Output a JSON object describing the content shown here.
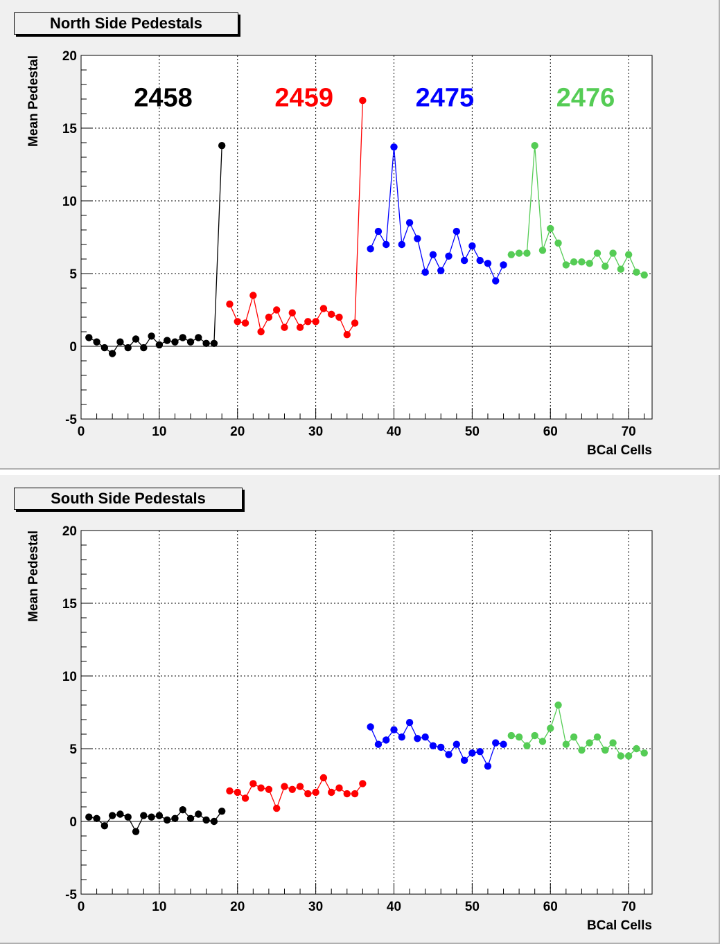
{
  "chart_data": [
    {
      "type": "line",
      "title": "North Side Pedestals",
      "xlabel": "BCal Cells",
      "ylabel": "Mean Pedestal",
      "xlim": [
        0,
        73
      ],
      "ylim": [
        -5,
        20
      ],
      "x_ticks": [
        "0",
        "10",
        "20",
        "30",
        "40",
        "50",
        "60",
        "70"
      ],
      "y_ticks": [
        "-5",
        "0",
        "5",
        "10",
        "15",
        "20"
      ],
      "grid": true,
      "series": [
        {
          "name": "2458",
          "color": "#000000",
          "x": [
            1,
            2,
            3,
            4,
            5,
            6,
            7,
            8,
            9,
            10,
            11,
            12,
            13,
            14,
            15,
            16,
            17,
            18
          ],
          "values": [
            0.6,
            0.3,
            -0.1,
            -0.5,
            0.3,
            -0.1,
            0.5,
            -0.1,
            0.7,
            0.1,
            0.4,
            0.3,
            0.6,
            0.3,
            0.6,
            0.2,
            0.2,
            13.8
          ]
        },
        {
          "name": "2459",
          "color": "#ff0000",
          "x": [
            19,
            20,
            21,
            22,
            23,
            24,
            25,
            26,
            27,
            28,
            29,
            30,
            31,
            32,
            33,
            34,
            35,
            36
          ],
          "values": [
            2.9,
            1.7,
            1.6,
            3.5,
            1.0,
            2.0,
            2.5,
            1.3,
            2.3,
            1.3,
            1.7,
            1.7,
            2.6,
            2.2,
            2.0,
            0.8,
            1.6,
            16.9
          ]
        },
        {
          "name": "2475",
          "color": "#0000ff",
          "x": [
            37,
            38,
            39,
            40,
            41,
            42,
            43,
            44,
            45,
            46,
            47,
            48,
            49,
            50,
            51,
            52,
            53,
            54
          ],
          "values": [
            6.7,
            7.9,
            7.0,
            13.7,
            7.0,
            8.5,
            7.4,
            5.1,
            6.3,
            5.2,
            6.2,
            7.9,
            5.9,
            6.9,
            5.9,
            5.7,
            4.5,
            5.6
          ]
        },
        {
          "name": "2476",
          "color": "#55cc55",
          "x": [
            55,
            56,
            57,
            58,
            59,
            60,
            61,
            62,
            63,
            64,
            65,
            66,
            67,
            68,
            69,
            70,
            71,
            72
          ],
          "values": [
            6.3,
            6.4,
            6.4,
            13.8,
            6.6,
            8.1,
            7.1,
            5.6,
            5.8,
            5.8,
            5.7,
            6.4,
            5.5,
            6.4,
            5.3,
            6.3,
            5.1,
            4.9
          ]
        }
      ]
    },
    {
      "type": "line",
      "title": "South Side Pedestals",
      "xlabel": "BCal Cells",
      "ylabel": "Mean Pedestal",
      "xlim": [
        0,
        73
      ],
      "ylim": [
        -5,
        20
      ],
      "x_ticks": [
        "0",
        "10",
        "20",
        "30",
        "40",
        "50",
        "60",
        "70"
      ],
      "y_ticks": [
        "-5",
        "0",
        "5",
        "10",
        "15",
        "20"
      ],
      "grid": true,
      "series": [
        {
          "color": "#000000",
          "x": [
            1,
            2,
            3,
            4,
            5,
            6,
            7,
            8,
            9,
            10,
            11,
            12,
            13,
            14,
            15,
            16,
            17,
            18
          ],
          "values": [
            0.3,
            0.2,
            -0.3,
            0.4,
            0.5,
            0.3,
            -0.7,
            0.4,
            0.3,
            0.4,
            0.1,
            0.2,
            0.8,
            0.2,
            0.5,
            0.1,
            0.0,
            0.7
          ]
        },
        {
          "color": "#ff0000",
          "x": [
            19,
            20,
            21,
            22,
            23,
            24,
            25,
            26,
            27,
            28,
            29,
            30,
            31,
            32,
            33,
            34,
            35,
            36
          ],
          "values": [
            2.1,
            2.0,
            1.6,
            2.6,
            2.3,
            2.2,
            0.9,
            2.4,
            2.2,
            2.4,
            1.9,
            2.0,
            3.0,
            2.0,
            2.3,
            1.9,
            1.9,
            2.6
          ]
        },
        {
          "color": "#0000ff",
          "x": [
            37,
            38,
            39,
            40,
            41,
            42,
            43,
            44,
            45,
            46,
            47,
            48,
            49,
            50,
            51,
            52,
            53,
            54
          ],
          "values": [
            6.5,
            5.3,
            5.6,
            6.3,
            5.8,
            6.8,
            5.7,
            5.8,
            5.2,
            5.1,
            4.6,
            5.3,
            4.2,
            4.7,
            4.8,
            3.8,
            5.4,
            5.3
          ]
        },
        {
          "color": "#55cc55",
          "x": [
            55,
            56,
            57,
            58,
            59,
            60,
            61,
            62,
            63,
            64,
            65,
            66,
            67,
            68,
            69,
            70,
            71,
            72
          ],
          "values": [
            5.9,
            5.8,
            5.2,
            5.9,
            5.5,
            6.4,
            8.0,
            5.3,
            5.8,
            4.9,
            5.4,
            5.8,
            4.9,
            5.4,
            4.5,
            4.5,
            5.0,
            4.7
          ]
        }
      ]
    }
  ]
}
